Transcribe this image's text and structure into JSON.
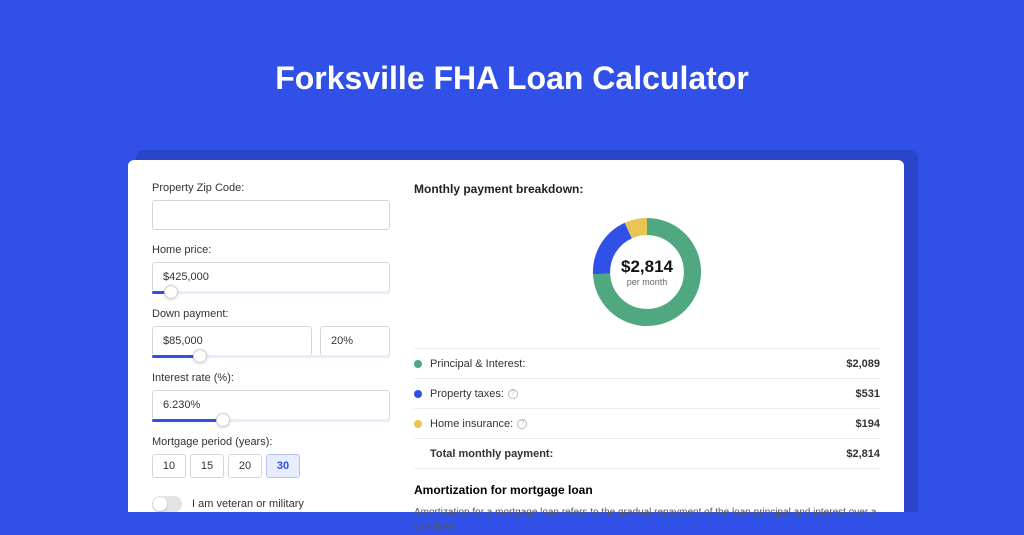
{
  "title": "Forksville FHA Loan Calculator",
  "colors": {
    "page_bg": "#3050e8",
    "shadow_bg": "#2a45c9",
    "card_bg": "#ffffff",
    "accent": "#3050e8",
    "donut_principal": "#4fa880",
    "donut_taxes": "#3050e8",
    "donut_insurance": "#e8c552"
  },
  "form": {
    "zip_label": "Property Zip Code:",
    "zip_value": "",
    "price_label": "Home price:",
    "price_value": "$425,000",
    "price_slider_pct": 8,
    "down_label": "Down payment:",
    "down_value": "$85,000",
    "down_pct_value": "20%",
    "down_slider_pct": 20,
    "rate_label": "Interest rate (%):",
    "rate_value": "6.230%",
    "rate_slider_pct": 30,
    "period_label": "Mortgage period (years):",
    "period_options": [
      "10",
      "15",
      "20",
      "30"
    ],
    "period_active": "30",
    "veteran_label": "I am veteran or military"
  },
  "breakdown": {
    "title": "Monthly payment breakdown:",
    "total_display": "$2,814",
    "total_sub": "per month",
    "rows": [
      {
        "label": "Principal & Interest:",
        "value": "$2,089",
        "info": false
      },
      {
        "label": "Property taxes:",
        "value": "$531",
        "info": true
      },
      {
        "label": "Home insurance:",
        "value": "$194",
        "info": true
      }
    ],
    "total_row": {
      "label": "Total monthly payment:",
      "value": "$2,814"
    },
    "donut": {
      "segments": [
        {
          "pct": 74.2,
          "color": "#4fa880"
        },
        {
          "pct": 18.9,
          "color": "#3050e8"
        },
        {
          "pct": 6.9,
          "color": "#e8c552"
        }
      ],
      "stroke_width": 18
    }
  },
  "amortization": {
    "title": "Amortization for mortgage loan",
    "text": "Amortization for a mortgage loan refers to the gradual repayment of the loan principal and interest over a specified"
  }
}
